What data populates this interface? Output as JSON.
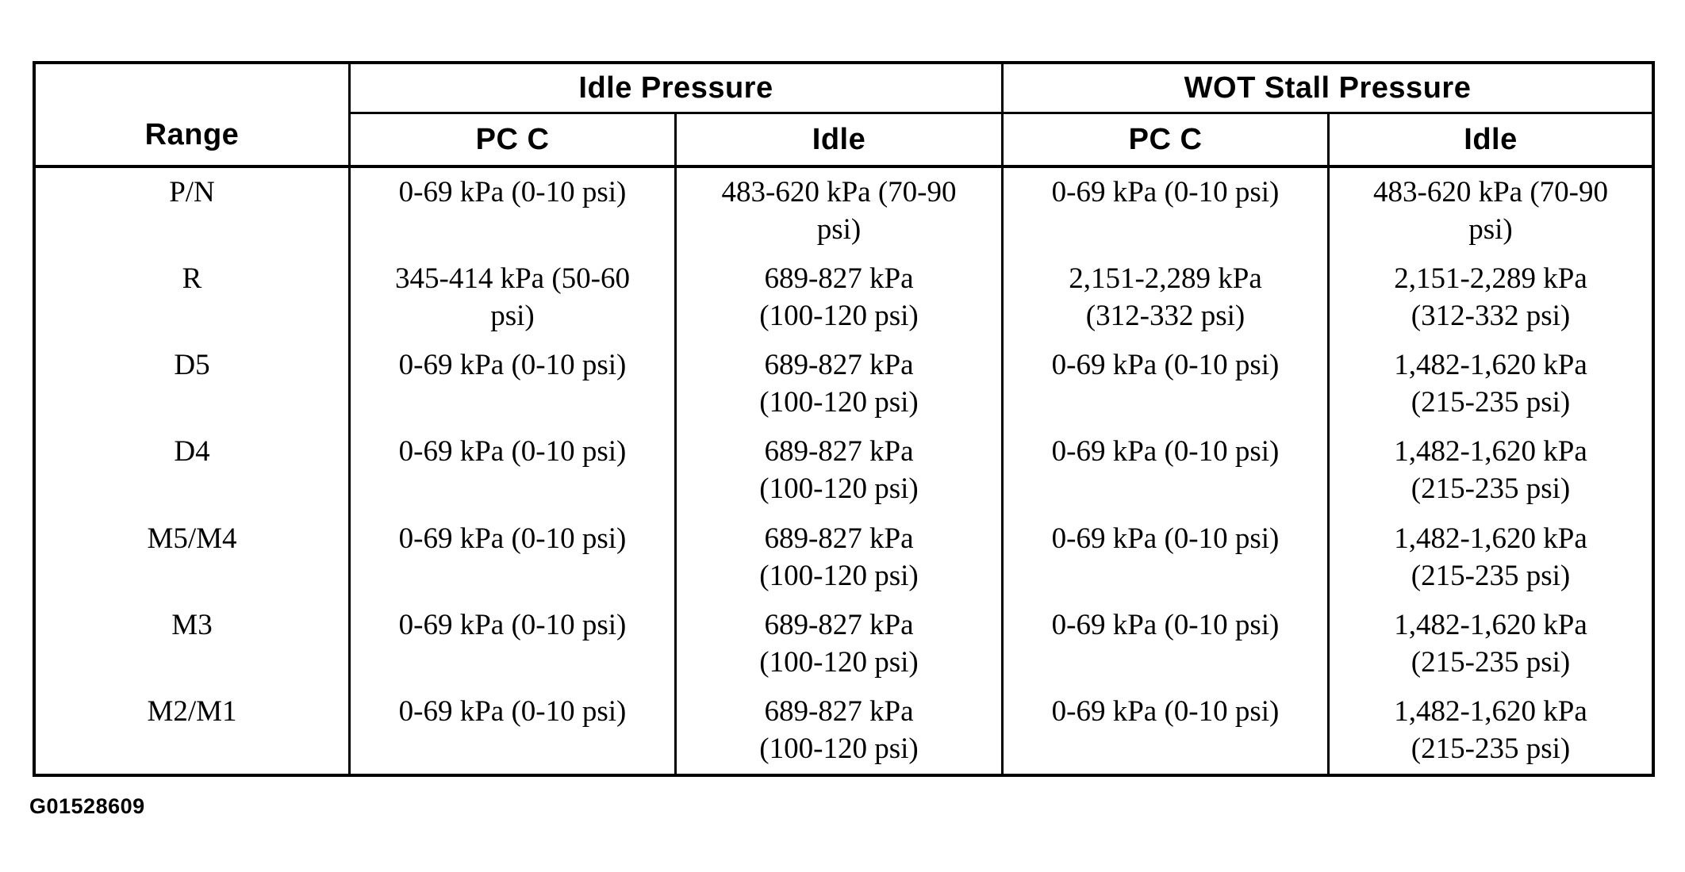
{
  "table": {
    "header": {
      "range_label": "Range",
      "group_headers": [
        "Idle Pressure",
        "WOT Stall Pressure"
      ],
      "sub_headers": [
        "PC C",
        "Idle",
        "PC C",
        "Idle"
      ]
    },
    "rows": [
      {
        "range": "P/N",
        "values": [
          "0-69 kPa (0-10 psi)",
          "483-620 kPa (70-90\npsi)",
          "0-69 kPa (0-10 psi)",
          "483-620 kPa (70-90\npsi)"
        ]
      },
      {
        "range": "R",
        "values": [
          "345-414 kPa (50-60\npsi)",
          "689-827 kPa\n(100-120 psi)",
          "2,151-2,289 kPa\n(312-332 psi)",
          "2,151-2,289 kPa\n(312-332 psi)"
        ]
      },
      {
        "range": "D5",
        "values": [
          "0-69 kPa (0-10 psi)",
          "689-827 kPa\n(100-120 psi)",
          "0-69 kPa (0-10 psi)",
          "1,482-1,620 kPa\n(215-235 psi)"
        ]
      },
      {
        "range": "D4",
        "values": [
          "0-69 kPa (0-10 psi)",
          "689-827 kPa\n(100-120 psi)",
          "0-69 kPa (0-10 psi)",
          "1,482-1,620 kPa\n(215-235 psi)"
        ]
      },
      {
        "range": "M5/M4",
        "values": [
          "0-69 kPa (0-10 psi)",
          "689-827 kPa\n(100-120 psi)",
          "0-69 kPa (0-10 psi)",
          "1,482-1,620 kPa\n(215-235 psi)"
        ]
      },
      {
        "range": "M3",
        "values": [
          "0-69 kPa (0-10 psi)",
          "689-827 kPa\n(100-120 psi)",
          "0-69 kPa (0-10 psi)",
          "1,482-1,620 kPa\n(215-235 psi)"
        ]
      },
      {
        "range": "M2/M1",
        "values": [
          "0-69 kPa (0-10 psi)",
          "689-827 kPa\n(100-120 psi)",
          "0-69 kPa (0-10 psi)",
          "1,482-1,620 kPa\n(215-235 psi)"
        ]
      }
    ]
  },
  "footer": {
    "figure_id": "G01528609"
  }
}
